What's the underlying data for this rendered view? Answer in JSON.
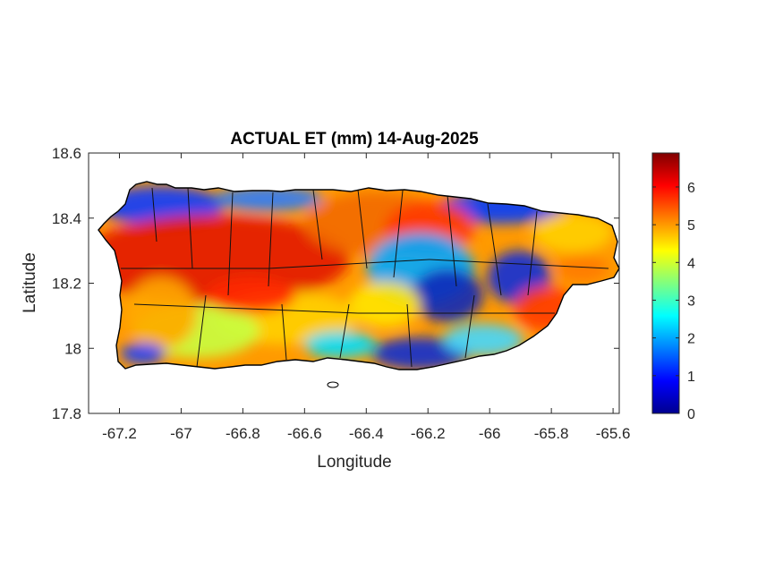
{
  "chart_data": {
    "type": "heatmap",
    "title": "ACTUAL ET (mm) 14-Aug-2025",
    "xlabel": "Longitude",
    "ylabel": "Latitude",
    "xlim": [
      -67.3,
      -65.58
    ],
    "ylim": [
      17.8,
      18.6
    ],
    "xticks": [
      -67.2,
      -67,
      -66.8,
      -66.6,
      -66.4,
      -66.2,
      -66,
      -65.8,
      -65.6
    ],
    "xtick_labels": [
      "-67.2",
      "-67",
      "-66.8",
      "-66.6",
      "-66.4",
      "-66.2",
      "-66",
      "-65.8",
      "-65.6"
    ],
    "yticks": [
      17.8,
      18,
      18.2,
      18.4,
      18.6
    ],
    "ytick_labels": [
      "17.8",
      "18",
      "18.2",
      "18.4",
      "18.6"
    ],
    "colorbar": {
      "colormap": "jet",
      "range": [
        0,
        6.9
      ],
      "ticks": [
        0,
        1,
        2,
        3,
        4,
        5,
        6
      ],
      "tick_labels": [
        "0",
        "1",
        "2",
        "3",
        "4",
        "5",
        "6"
      ]
    },
    "grid": false,
    "box": true
  }
}
